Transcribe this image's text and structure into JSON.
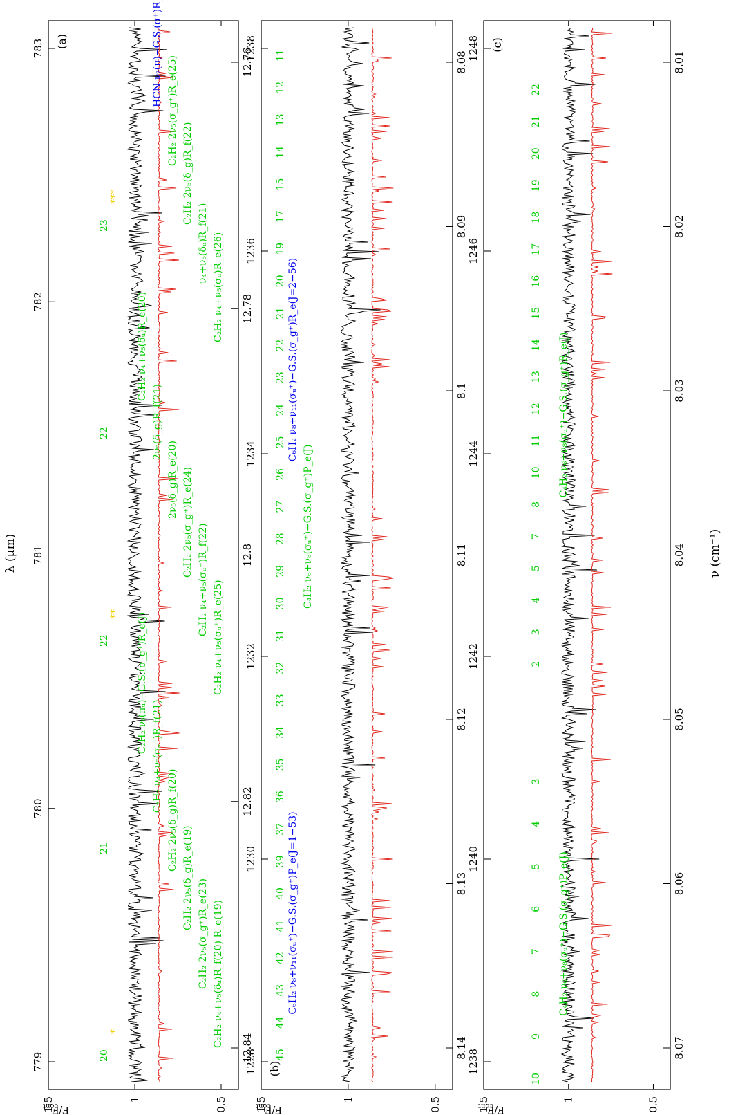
{
  "chart_data": [
    {
      "panel": "(a)",
      "type": "line",
      "ylabel": "F/F_cont",
      "ylim": [
        0.4,
        1.5
      ],
      "y_ticks": [
        "0.5",
        "1",
        "1.5"
      ],
      "top_axis_label": "λ (μm)",
      "top_axis_ticks": [
        "12.76",
        "12.78",
        "12.8",
        "12.82",
        "12.84"
      ],
      "bottom_axis_ticks": [
        "779",
        "780",
        "781",
        "782",
        "783"
      ],
      "xlim_wavenumber": [
        778.3,
        783.8
      ],
      "series": [
        {
          "name": "observed",
          "color": "#000000",
          "offset": 1.0
        },
        {
          "name": "model",
          "color": "#e0241b",
          "offset": 0.86
        }
      ],
      "assignments": [
        {
          "text": "C₂H₂ ν₄+ν₅(δᵤ)R_f(20)",
          "sub": "R_e(19)",
          "color": "#00cc00"
        },
        {
          "text": "C₂H₂ 2ν₅(σ_g⁺)R_e(23)",
          "color": "#00cc00"
        },
        {
          "text": "C₂H₂ 2ν₅(δ_g)R_e(19)",
          "color": "#00cc00"
        },
        {
          "text": "C₂H₂ 2ν₅(δ_g)R_f(20)",
          "color": "#00cc00"
        },
        {
          "text": "C₂H₂ ν₄+ν₅(σᵤ⁻)R_f(21)",
          "color": "#00cc00"
        },
        {
          "text": "C₂H₂ ν₅(πᵤ)−G.S.(σ_g⁺)R_e(J)",
          "color": "#00cc00"
        },
        {
          "text": "C₂H₂ ν₄+ν₅(σᵤ⁺)R_e(25)",
          "color": "#00cc00"
        },
        {
          "text": "C₂H₂ ν₄+ν₅(σᵤ⁻)R_f(22)",
          "color": "#00cc00"
        },
        {
          "text": "C₂H₂ 2ν₅(σ_g⁺)R_e(24)",
          "color": "#00cc00"
        },
        {
          "text": "2ν₅(δ_g)R_e(20)",
          "color": "#00cc00"
        },
        {
          "text": "2ν₅(δ_g)R_f(21)",
          "color": "#00cc00"
        },
        {
          "text": "C₂H₂ ν₄+ν₅(δᵤ)R_e(20)",
          "color": "#00cc00"
        },
        {
          "text": "C₂H₂ ν₄+ν₅(σᵤ)R_e(26)",
          "color": "#00cc00"
        },
        {
          "text": "ν₄+ν₅(δᵤ)R_f(21)",
          "color": "#00cc00"
        },
        {
          "text": "C₂H₂ 2ν₅(δ_g)R_f(22)",
          "color": "#00cc00"
        },
        {
          "text": "C₂H₂ 2ν₅(σ_g⁺)R_e(25)",
          "color": "#00cc00"
        },
        {
          "text": "HCN ν₂(π)−G.S.(σ⁺)R_e(J)",
          "color": "#0000ee"
        }
      ],
      "line_numbers": [
        "20",
        "21",
        "22",
        "22",
        "23"
      ],
      "stars": [
        "*",
        "**",
        "***"
      ]
    },
    {
      "panel": "(b)",
      "type": "line",
      "ylabel": "F/F_cont",
      "ylim": [
        0.4,
        1.5
      ],
      "y_ticks": [
        "0.5",
        "1",
        "1.5"
      ],
      "top_axis_ticks": [
        "8.08",
        "8.09",
        "8.1",
        "8.11",
        "8.12",
        "8.13",
        "8.14"
      ],
      "bottom_axis_ticks": [
        "1228",
        "1230",
        "1232",
        "1234",
        "1236",
        "1238"
      ],
      "xlim_wavenumber": [
        1227.2,
        1238.0
      ],
      "series": [
        {
          "name": "observed",
          "color": "#000000",
          "offset": 1.0
        },
        {
          "name": "model",
          "color": "#e0241b",
          "offset": 0.86
        }
      ],
      "progression": {
        "label": "C₄H₂ ν₆+ν₈(σᵤ⁺)−G.S.(σ_g⁺)P_e(J)",
        "color": "#00cc00",
        "J": [
          "45",
          "44",
          "43",
          "42",
          "41",
          "40",
          "39",
          "37",
          "36",
          "35",
          "34",
          "33",
          "32",
          "31",
          "30",
          "29",
          "28",
          "27",
          "26",
          "25",
          "24",
          "23",
          "22",
          "21",
          "20",
          "19",
          "17",
          "15",
          "14",
          "13",
          "12",
          "11"
        ]
      },
      "blue_labels": [
        "C₆H₂ ν₈+ν₁₁(σᵤ⁺)−G.S.(σ_g⁺)P_e(J=1−53)",
        "C₆H₂ ν₈+ν₁₁(σᵤ⁺)−G.S.(σ_g⁺)R_e(J=2−56)"
      ]
    },
    {
      "panel": "(c)",
      "type": "line",
      "ylabel": "F/F_cont",
      "ylim": [
        0.4,
        1.5
      ],
      "y_ticks": [
        "0.5",
        "1",
        "1.5"
      ],
      "top_axis_ticks": [
        "8.01",
        "8.02",
        "8.03",
        "8.04",
        "8.05",
        "8.06",
        "8.07"
      ],
      "bottom_axis_ticks": [
        "1238",
        "1240",
        "1242",
        "1244",
        "1246",
        "1248"
      ],
      "xlabel": "ν (cm⁻¹)",
      "xlim_wavenumber": [
        1238.0,
        1249.4
      ],
      "series": [
        {
          "name": "observed",
          "color": "#000000",
          "offset": 1.0
        },
        {
          "name": "model",
          "color": "#e0241b",
          "offset": 0.86
        }
      ],
      "progressions": [
        {
          "label": "C₄H₂ ν₆+ν₈(σᵤ⁺)−G.S.(σ_g⁺)P_e(J)",
          "color": "#00cc00",
          "J": [
            "10",
            "9",
            "8",
            "7",
            "6",
            "5",
            "4",
            "3"
          ]
        },
        {
          "label": "C₄H₂ ν₆+ν₈(σᵤ⁺)−G.S.(σ_g⁺)R_e(J)",
          "color": "#00cc00",
          "J": [
            "2",
            "3",
            "4",
            "5",
            "7",
            "8",
            "10",
            "11",
            "12",
            "13",
            "14",
            "15",
            "16",
            "17",
            "18",
            "19",
            "20",
            "21",
            "22"
          ]
        }
      ]
    }
  ]
}
